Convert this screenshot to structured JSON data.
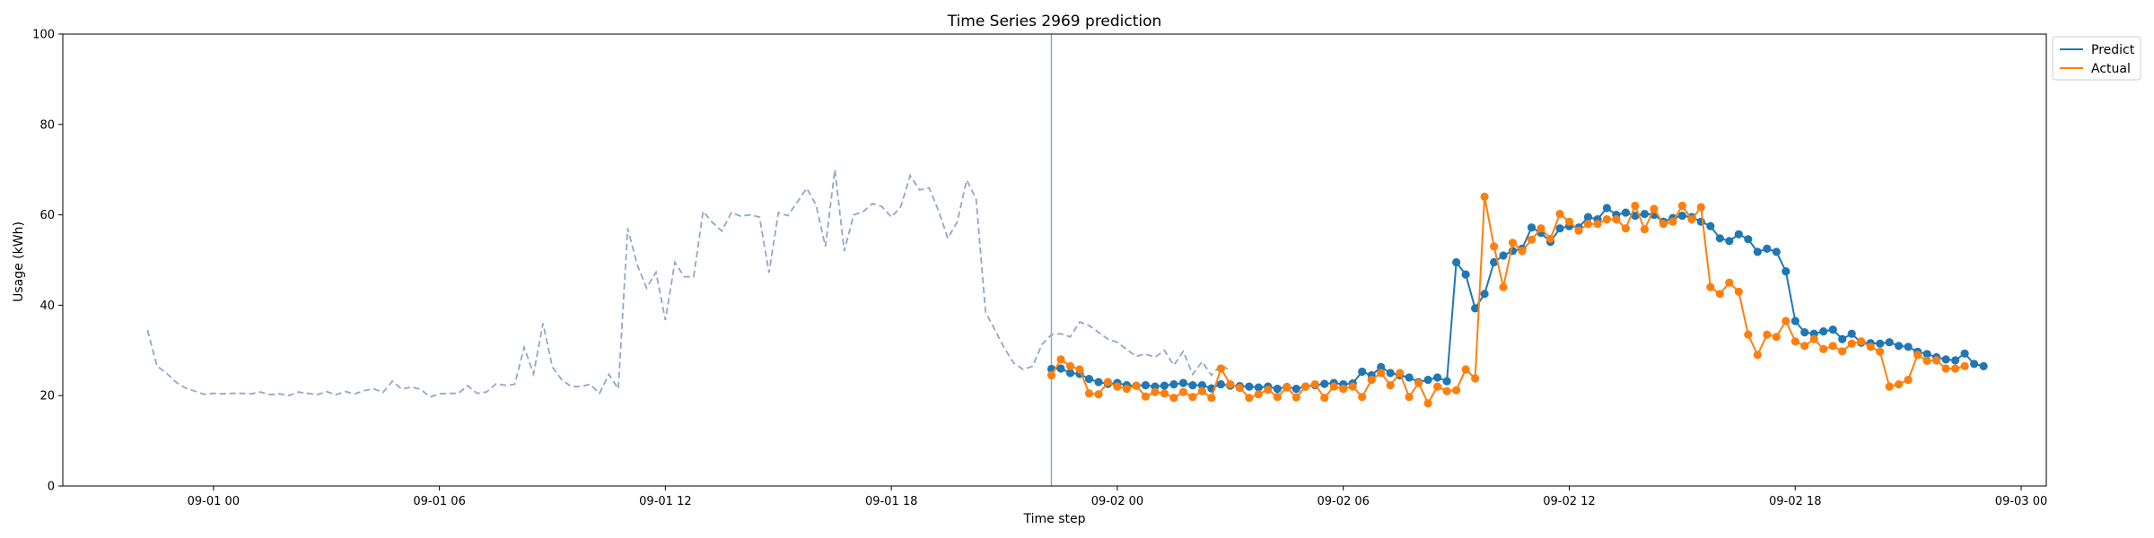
{
  "chart_data": {
    "type": "line",
    "title": "Time Series 2969 prediction",
    "xlabel": "Time step",
    "ylabel": "Usage (kWh)",
    "ylim": [
      0,
      100
    ],
    "yticks": [
      0,
      20,
      40,
      60,
      80,
      100
    ],
    "xlim": [
      "2023-08-31 20:00",
      "2023-09-03 00:40"
    ],
    "xticks": [
      {
        "t": "2023-09-01 00:00",
        "label": "09-01 00"
      },
      {
        "t": "2023-09-01 06:00",
        "label": "09-01 06"
      },
      {
        "t": "2023-09-01 12:00",
        "label": "09-01 12"
      },
      {
        "t": "2023-09-01 18:00",
        "label": "09-01 18"
      },
      {
        "t": "2023-09-02 00:00",
        "label": "09-02 00"
      },
      {
        "t": "2023-09-02 06:00",
        "label": "09-02 06"
      },
      {
        "t": "2023-09-02 12:00",
        "label": "09-02 12"
      },
      {
        "t": "2023-09-02 18:00",
        "label": "09-02 18"
      },
      {
        "t": "2023-09-03 00:00",
        "label": "09-03 00"
      }
    ],
    "grid": false,
    "legend_position": "top-right-outside",
    "forecast_start": "2023-09-01 22:15",
    "colors": {
      "history": "#8fa8c8",
      "predict": "#1f77b4",
      "actual": "#ff7f0e",
      "divider": "#8fa8c8"
    },
    "history": {
      "start": "2023-08-31 22:15",
      "step_minutes": 15,
      "values": [
        34.5,
        26.5,
        25.0,
        23.0,
        21.7,
        21.0,
        20.3,
        20.5,
        20.4,
        20.5,
        20.5,
        20.4,
        20.8,
        20.2,
        20.4,
        20.0,
        20.8,
        20.5,
        20.2,
        20.9,
        20.2,
        20.9,
        20.4,
        21.1,
        21.5,
        20.7,
        23.2,
        21.4,
        21.9,
        21.4,
        19.7,
        20.4,
        20.5,
        20.5,
        22.2,
        20.5,
        20.8,
        22.6,
        22.3,
        22.5,
        30.7,
        24.8,
        36.0,
        26.3,
        23.5,
        22.0,
        22.0,
        22.5,
        20.5,
        24.7,
        21.5,
        57.0,
        49.0,
        43.8,
        47.3,
        36.7,
        49.5,
        46.3,
        46.3,
        60.8,
        58.3,
        56.4,
        60.5,
        59.7,
        60.0,
        59.5,
        47.2,
        60.5,
        59.8,
        62.8,
        65.9,
        62.2,
        53.0,
        70.0,
        52.0,
        60.0,
        60.7,
        62.5,
        61.8,
        59.5,
        61.8,
        68.7,
        65.5,
        66.0,
        61.0,
        54.8,
        58.5,
        67.7,
        63.5,
        38.5,
        34.5,
        30.5,
        27.2,
        25.8,
        26.5,
        31.3,
        33.5,
        33.7,
        33.0,
        36.3,
        35.5,
        34.0,
        32.5,
        31.8,
        30.2,
        28.7,
        29.2,
        28.5,
        30.0,
        26.7,
        29.8,
        24.7,
        27.5,
        24.5,
        26.8,
        25.5
      ]
    },
    "series": [
      {
        "name": "Predict",
        "start": "2023-09-01 22:15",
        "step_minutes": 15,
        "values": [
          25.9,
          26.0,
          25.0,
          24.8,
          23.7,
          23.0,
          22.6,
          22.8,
          22.3,
          22.2,
          22.3,
          22.0,
          22.2,
          22.5,
          22.8,
          22.3,
          22.3,
          21.6,
          22.5,
          22.2,
          22.1,
          22.0,
          21.8,
          22.0,
          21.5,
          21.9,
          21.5,
          22.0,
          22.3,
          22.6,
          22.8,
          22.5,
          22.7,
          25.3,
          24.5,
          26.3,
          25.0,
          24.5,
          24.0,
          23.0,
          23.5,
          24.0,
          23.2,
          49.5,
          46.8,
          39.3,
          42.5,
          49.5,
          51.0,
          52.0,
          52.5,
          57.2,
          56.0,
          54.0,
          57.0,
          57.5,
          57.2,
          59.5,
          59.0,
          61.5,
          60.0,
          60.5,
          59.8,
          60.2,
          60.0,
          58.5,
          59.3,
          59.8,
          59.5,
          58.5,
          57.5,
          54.8,
          54.2,
          55.7,
          54.6,
          51.8,
          52.5,
          51.8,
          47.5,
          36.5,
          34.0,
          33.7,
          34.2,
          34.6,
          32.5,
          33.7,
          31.7,
          31.6,
          31.5,
          31.8,
          31.0,
          30.8,
          29.7,
          29.2,
          28.5,
          28.0,
          27.8,
          29.3,
          27.0,
          26.5
        ]
      },
      {
        "name": "Actual",
        "start": "2023-09-01 22:15",
        "step_minutes": 15,
        "values": [
          24.5,
          28.0,
          26.5,
          25.8,
          20.5,
          20.3,
          23.0,
          22.0,
          21.5,
          22.2,
          19.8,
          20.8,
          20.5,
          19.5,
          20.8,
          19.7,
          21.0,
          19.5,
          26.0,
          22.5,
          21.7,
          19.5,
          20.3,
          21.3,
          19.7,
          21.8,
          19.6,
          22.0,
          22.5,
          19.5,
          22.0,
          21.5,
          22.0,
          19.7,
          23.5,
          25.0,
          22.3,
          25.0,
          19.7,
          22.8,
          18.3,
          22.0,
          21.0,
          21.2,
          25.8,
          23.8,
          64.0,
          53.0,
          44.0,
          53.8,
          52.0,
          54.5,
          57.0,
          54.7,
          60.2,
          58.5,
          56.5,
          58.0,
          58.0,
          59.0,
          59.0,
          57.0,
          62.0,
          56.8,
          61.3,
          58.0,
          58.5,
          62.0,
          59.0,
          61.7,
          44.0,
          42.5,
          45.0,
          43.0,
          33.5,
          29.0,
          33.5,
          33.0,
          36.5,
          32.0,
          31.0,
          32.5,
          30.3,
          31.0,
          29.8,
          31.5,
          32.0,
          30.8,
          29.7,
          22.0,
          22.5,
          23.5,
          29.0,
          27.7,
          27.8,
          26.0,
          26.0,
          26.5
        ]
      }
    ]
  }
}
